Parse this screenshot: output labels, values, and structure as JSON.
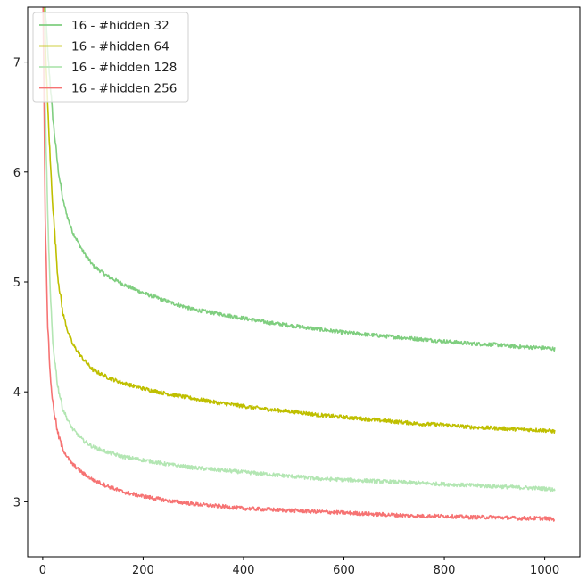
{
  "chart_data": {
    "type": "line",
    "title": "",
    "xlabel": "",
    "ylabel": "",
    "xlim": [
      -30,
      1070
    ],
    "ylim": [
      2.5,
      7.5
    ],
    "xticks": [
      0,
      200,
      400,
      600,
      800,
      1000
    ],
    "yticks": [
      3,
      4,
      5,
      6,
      7
    ],
    "grid": false,
    "legend_position": "top-left",
    "series": [
      {
        "name": "16 - #hidden 32",
        "color": "#7fce7f",
        "x": [
          0,
          5,
          10,
          15,
          20,
          30,
          40,
          50,
          60,
          80,
          100,
          130,
          160,
          200,
          250,
          300,
          350,
          400,
          450,
          500,
          550,
          600,
          650,
          700,
          750,
          800,
          850,
          900,
          950,
          1000,
          1020
        ],
        "y": [
          7.8,
          7.5,
          7.1,
          6.8,
          6.5,
          6.05,
          5.75,
          5.58,
          5.45,
          5.28,
          5.15,
          5.05,
          4.98,
          4.9,
          4.82,
          4.75,
          4.71,
          4.67,
          4.63,
          4.6,
          4.57,
          4.54,
          4.52,
          4.5,
          4.48,
          4.46,
          4.44,
          4.43,
          4.41,
          4.4,
          4.39
        ]
      },
      {
        "name": "16 - #hidden 64",
        "color": "#bfbf00",
        "x": [
          0,
          5,
          10,
          15,
          20,
          30,
          40,
          50,
          60,
          80,
          100,
          130,
          160,
          200,
          250,
          300,
          350,
          400,
          450,
          500,
          550,
          600,
          650,
          700,
          750,
          800,
          850,
          900,
          950,
          1000,
          1020
        ],
        "y": [
          7.8,
          7.2,
          6.6,
          6.1,
          5.7,
          5.05,
          4.72,
          4.55,
          4.43,
          4.3,
          4.2,
          4.13,
          4.08,
          4.03,
          3.98,
          3.94,
          3.9,
          3.87,
          3.84,
          3.82,
          3.79,
          3.77,
          3.75,
          3.73,
          3.71,
          3.7,
          3.68,
          3.67,
          3.66,
          3.65,
          3.64
        ]
      },
      {
        "name": "16 - #hidden 128",
        "color": "#b3e6b3",
        "x": [
          0,
          5,
          10,
          15,
          20,
          30,
          40,
          50,
          60,
          80,
          100,
          130,
          160,
          200,
          250,
          300,
          350,
          400,
          450,
          500,
          550,
          600,
          650,
          700,
          750,
          800,
          850,
          900,
          950,
          1000,
          1020
        ],
        "y": [
          7.8,
          6.6,
          5.6,
          4.9,
          4.45,
          4.05,
          3.85,
          3.74,
          3.66,
          3.56,
          3.5,
          3.45,
          3.41,
          3.38,
          3.34,
          3.31,
          3.29,
          3.27,
          3.25,
          3.23,
          3.21,
          3.2,
          3.19,
          3.18,
          3.17,
          3.16,
          3.15,
          3.14,
          3.13,
          3.12,
          3.11
        ]
      },
      {
        "name": "16 - #hidden 256",
        "color": "#f67373",
        "x": [
          0,
          5,
          10,
          15,
          20,
          30,
          40,
          50,
          60,
          80,
          100,
          130,
          160,
          200,
          250,
          300,
          350,
          400,
          450,
          500,
          550,
          600,
          650,
          700,
          750,
          800,
          850,
          900,
          950,
          1000,
          1020
        ],
        "y": [
          7.8,
          5.6,
          4.6,
          4.15,
          3.9,
          3.62,
          3.48,
          3.4,
          3.34,
          3.26,
          3.2,
          3.14,
          3.09,
          3.05,
          3.01,
          2.98,
          2.96,
          2.94,
          2.93,
          2.92,
          2.91,
          2.9,
          2.89,
          2.88,
          2.87,
          2.87,
          2.86,
          2.86,
          2.85,
          2.85,
          2.84
        ]
      }
    ]
  }
}
